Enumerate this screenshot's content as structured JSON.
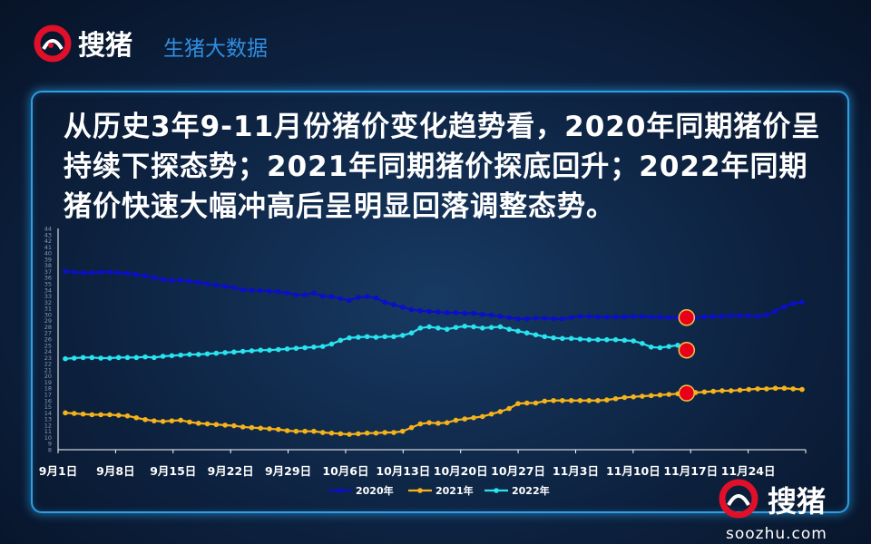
{
  "header": {
    "brand_logo_text": "搜猪",
    "brand_title": "生猪大数据"
  },
  "headline": "从历史3年9-11月份猪价变化趋势看，2020年同期猪价呈持续下探态势；2021年同期猪价探底回升；2022年同期猪价快速大幅冲高后呈明显回落调整态势。",
  "watermark": {
    "logo_text": "搜猪",
    "domain": "soozhu.com"
  },
  "colors": {
    "series_2020": "#0b0fc8",
    "series_2021": "#f5b31b",
    "series_2022": "#29e3ef",
    "highlight": "#e8001a",
    "panel_border": "#2e9fe6"
  },
  "chart_data": {
    "type": "line",
    "ylim": [
      8,
      44
    ],
    "yticks": [
      8,
      9,
      10,
      11,
      12,
      13,
      14,
      15,
      16,
      17,
      18,
      19,
      20,
      21,
      22,
      23,
      24,
      25,
      26,
      27,
      28,
      29,
      30,
      31,
      32,
      33,
      34,
      35,
      36,
      37,
      38,
      39,
      40,
      41,
      42,
      43,
      44
    ],
    "x_labels": [
      "9月1日",
      "9月8日",
      "9月15日",
      "9月22日",
      "9月29日",
      "10月6日",
      "10月13日",
      "10月20日",
      "10月27日",
      "11月3日",
      "11月10日",
      "11月17日",
      "11月24日"
    ],
    "legend_position": "bottom",
    "series": [
      {
        "name": "2020年",
        "color": "#0b0fc8",
        "values": [
          37.0,
          36.9,
          36.8,
          36.8,
          36.9,
          36.9,
          36.8,
          36.7,
          36.5,
          36.3,
          36.0,
          35.7,
          35.5,
          35.6,
          35.4,
          35.2,
          35.0,
          34.8,
          34.6,
          34.4,
          34.0,
          33.9,
          33.9,
          33.8,
          33.7,
          33.5,
          33.2,
          33.2,
          33.5,
          33.0,
          32.9,
          32.6,
          32.3,
          32.8,
          32.9,
          32.7,
          32.0,
          31.6,
          31.2,
          30.8,
          30.6,
          30.5,
          30.4,
          30.3,
          30.3,
          30.2,
          30.2,
          30.0,
          29.9,
          29.7,
          29.5,
          29.3,
          29.3,
          29.4,
          29.4,
          29.3,
          29.3,
          29.5,
          29.7,
          29.7,
          29.6,
          29.6,
          29.6,
          29.6,
          29.7,
          29.7,
          29.6,
          29.6,
          29.5,
          29.5,
          29.5,
          29.5,
          29.6,
          29.7,
          29.7,
          29.8,
          29.8,
          29.8,
          29.7,
          29.9,
          30.5,
          31.3,
          31.8,
          32.0
        ],
        "highlight_index": 70
      },
      {
        "name": "2021年",
        "color": "#f5b31b",
        "values": [
          14.0,
          13.9,
          13.8,
          13.7,
          13.7,
          13.7,
          13.6,
          13.5,
          13.2,
          12.9,
          12.7,
          12.6,
          12.7,
          12.8,
          12.5,
          12.3,
          12.2,
          12.1,
          12.0,
          11.9,
          11.7,
          11.6,
          11.5,
          11.4,
          11.3,
          11.1,
          11.0,
          11.0,
          11.0,
          10.8,
          10.7,
          10.6,
          10.5,
          10.6,
          10.7,
          10.7,
          10.8,
          10.8,
          11.0,
          11.6,
          12.2,
          12.4,
          12.3,
          12.4,
          12.8,
          13.0,
          13.2,
          13.4,
          13.8,
          14.2,
          14.7,
          15.5,
          15.6,
          15.6,
          15.9,
          16.0,
          16.0,
          16.0,
          16.0,
          16.0,
          16.0,
          16.1,
          16.3,
          16.5,
          16.6,
          16.7,
          16.8,
          16.9,
          17.0,
          17.1,
          17.2,
          17.3,
          17.4,
          17.5,
          17.6,
          17.6,
          17.7,
          17.8,
          17.9,
          17.9,
          18.0,
          18.0,
          17.9,
          17.8
        ],
        "highlight_index": 70
      },
      {
        "name": "2022年",
        "color": "#29e3ef",
        "values": [
          22.8,
          22.9,
          23.0,
          23.0,
          22.9,
          22.9,
          23.0,
          23.0,
          23.0,
          23.1,
          23.0,
          23.2,
          23.3,
          23.4,
          23.5,
          23.5,
          23.6,
          23.7,
          23.8,
          23.9,
          24.0,
          24.1,
          24.2,
          24.2,
          24.3,
          24.4,
          24.5,
          24.6,
          24.7,
          24.8,
          25.2,
          25.8,
          26.2,
          26.3,
          26.4,
          26.3,
          26.4,
          26.4,
          26.6,
          27.0,
          27.8,
          28.0,
          27.8,
          27.6,
          27.9,
          28.1,
          28.0,
          27.8,
          27.9,
          28.0,
          27.6,
          27.3,
          27.0,
          26.7,
          26.4,
          26.2,
          26.1,
          26.1,
          26.0,
          25.9,
          25.9,
          25.9,
          25.9,
          25.8,
          25.7,
          25.3,
          24.7,
          24.6,
          24.8,
          25.0,
          24.2
        ],
        "highlight_index": 70
      }
    ]
  }
}
